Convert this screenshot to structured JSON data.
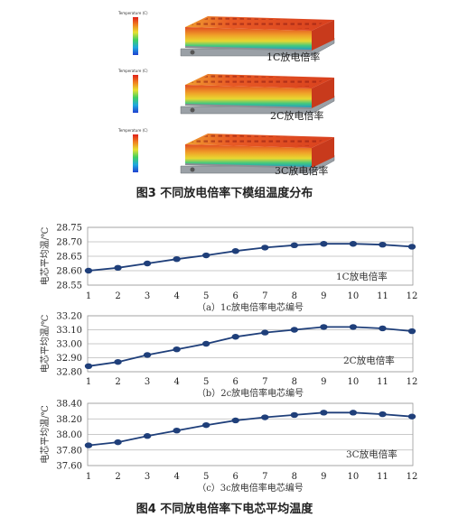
{
  "figure3": {
    "caption": "图3 不同放电倍率下模组温度分布",
    "legend_title": "Temperature (C)",
    "panels": [
      {
        "rate_label": "1C放电倍率"
      },
      {
        "rate_label": "2C放电倍率"
      },
      {
        "rate_label": "3C放电倍率"
      }
    ]
  },
  "figure4": {
    "caption": "图4 不同放电倍率下电芯平均温度"
  },
  "chart_data": [
    {
      "type": "line",
      "subcaption": "（a）1c放电倍率电芯编号",
      "ylabel": "电芯平均温/℃",
      "series_label": "1C放电倍率",
      "x": [
        1,
        2,
        3,
        4,
        5,
        6,
        7,
        8,
        9,
        10,
        11,
        12
      ],
      "xticks": [
        "1",
        "2",
        "3",
        "4",
        "5",
        "6",
        "7",
        "8",
        "9",
        "10",
        "11",
        "12"
      ],
      "values": [
        28.6,
        28.61,
        28.625,
        28.64,
        28.653,
        28.668,
        28.68,
        28.688,
        28.693,
        28.693,
        28.69,
        28.683
      ],
      "ylim": [
        28.55,
        28.75
      ],
      "yticks": [
        "28.55",
        "28.60",
        "28.65",
        "28.70",
        "28.75"
      ],
      "line_color": "#1f3f7a",
      "grid": "horizontal"
    },
    {
      "type": "line",
      "subcaption": "（b）2c放电倍率电芯编号",
      "ylabel": "电芯平均温/℃",
      "series_label": "2C放电倍率",
      "x": [
        1,
        2,
        3,
        4,
        5,
        6,
        7,
        8,
        9,
        10,
        11,
        12
      ],
      "xticks": [
        "1",
        "2",
        "3",
        "4",
        "5",
        "6",
        "7",
        "8",
        "9",
        "10",
        "11",
        "12"
      ],
      "values": [
        32.84,
        32.87,
        32.92,
        32.96,
        33.0,
        33.05,
        33.08,
        33.1,
        33.12,
        33.12,
        33.11,
        33.09
      ],
      "ylim": [
        32.8,
        33.2
      ],
      "yticks": [
        "32.80",
        "32.90",
        "33.00",
        "33.10",
        "33.20"
      ],
      "line_color": "#1f3f7a",
      "grid": "horizontal"
    },
    {
      "type": "line",
      "subcaption": "（c）3c放电倍率电芯编号",
      "ylabel": "电芯平均温/℃",
      "series_label": "3C放电倍率",
      "x": [
        1,
        2,
        3,
        4,
        5,
        6,
        7,
        8,
        9,
        10,
        11,
        12
      ],
      "xticks": [
        "1",
        "2",
        "3",
        "4",
        "5",
        "6",
        "7",
        "8",
        "9",
        "10",
        "11",
        "12"
      ],
      "values": [
        37.86,
        37.9,
        37.98,
        38.05,
        38.12,
        38.18,
        38.22,
        38.25,
        38.28,
        38.28,
        38.26,
        38.23
      ],
      "ylim": [
        37.6,
        38.4
      ],
      "yticks": [
        "37.60",
        "37.80",
        "38.00",
        "38.20",
        "38.40"
      ],
      "line_color": "#1f3f7a",
      "grid": "horizontal"
    }
  ]
}
